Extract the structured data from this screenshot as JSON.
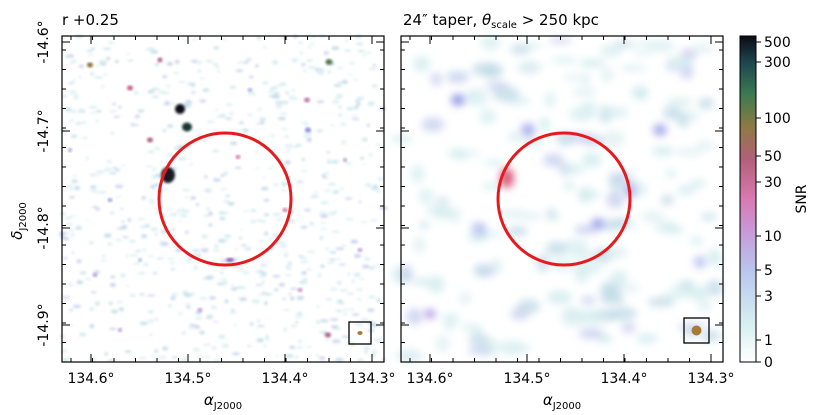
{
  "panels": [
    {
      "title": "r +0.25",
      "x_ticks": [
        "134.6°",
        "134.5°",
        "134.4°",
        "134.3°"
      ],
      "y_ticks": [
        "-14.6°",
        "-14.7°",
        "-14.8°",
        "-14.9°"
      ],
      "x_label": "α",
      "x_label_sub": "J2000",
      "y_label": "δ",
      "y_label_sub": "J2000"
    },
    {
      "title_prefix": "24″ taper, ",
      "title_theta": "θ",
      "title_sub": "scale",
      "title_suffix": " > 250 kpc",
      "x_ticks": [
        "134.6°",
        "134.5°",
        "134.4°",
        "134.3°"
      ],
      "x_label": "α",
      "x_label_sub": "J2000"
    }
  ],
  "colorbar": {
    "label": "SNR",
    "ticks": [
      "500",
      "300",
      "100",
      "50",
      "30",
      "10",
      "5",
      "3",
      "1",
      "0"
    ]
  },
  "colors": {
    "circle": "#e8191c",
    "beam_left": "#a87a3a",
    "beam_right": "#a87a3a"
  }
}
